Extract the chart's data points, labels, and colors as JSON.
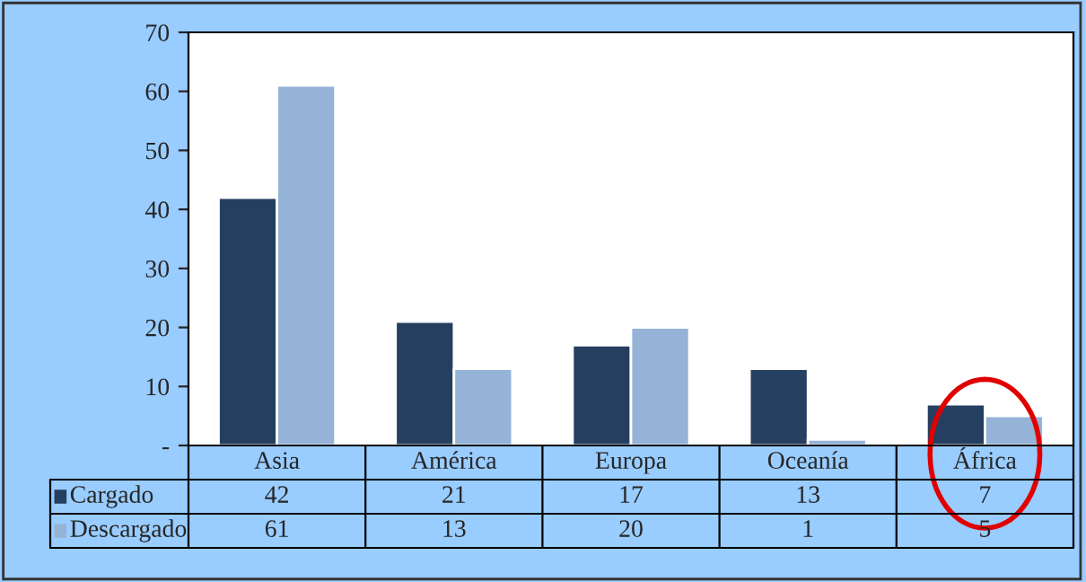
{
  "chart_data": {
    "type": "bar",
    "categories": [
      "Asia",
      "América",
      "Europa",
      "Oceanía",
      "África"
    ],
    "series": [
      {
        "name": "Cargado",
        "color": "#243f60",
        "values": [
          42,
          21,
          17,
          13,
          7
        ]
      },
      {
        "name": "Descargado",
        "color": "#95b3d7",
        "values": [
          61,
          13,
          20,
          1,
          5
        ]
      }
    ],
    "ylim": [
      0,
      70
    ],
    "yticks": [
      {
        "value": 0,
        "label": "-"
      },
      10,
      20,
      30,
      40,
      50,
      60,
      70
    ],
    "data_labels": true,
    "legend": "bottom",
    "grid": false
  }
}
